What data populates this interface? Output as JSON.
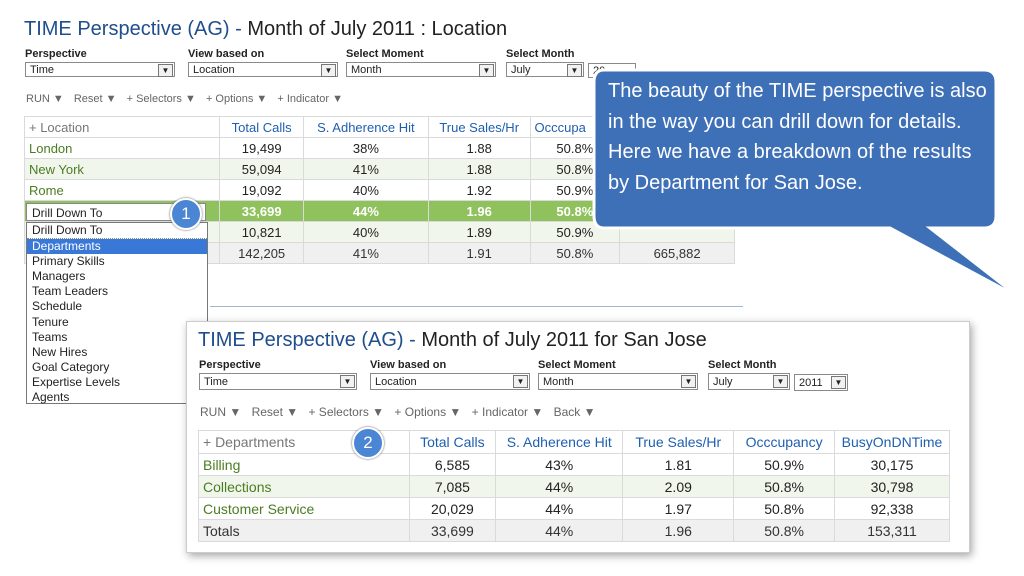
{
  "top": {
    "title_blue": "TIME Perspective (AG) -",
    "title_dark": "Month of July 2011 : Location",
    "selectors": [
      {
        "label": "Perspective",
        "value": "Time"
      },
      {
        "label": "View based on",
        "value": "Location"
      },
      {
        "label": "Select Moment",
        "value": "Month"
      },
      {
        "label": "Select Month",
        "value": "July",
        "year": "20"
      }
    ],
    "toolbar": [
      "RUN ▼",
      "Reset ▼",
      "+ Selectors ▼",
      "+ Options ▼",
      "+ Indicator ▼"
    ],
    "table": {
      "headers": [
        "+ Location",
        "Total Calls",
        "S. Adherence Hit",
        "True Sales/Hr",
        "Occcupa"
      ],
      "rows": [
        [
          "London",
          "19,499",
          "38%",
          "1.88",
          "50.8%"
        ],
        [
          "New York",
          "59,094",
          "41%",
          "1.88",
          "50.8%"
        ],
        [
          "Rome",
          "19,092",
          "40%",
          "1.92",
          "50.9%"
        ],
        [
          "",
          "33,699",
          "44%",
          "1.96",
          "50.8%"
        ],
        [
          "",
          "10,821",
          "40%",
          "1.89",
          "50.9%"
        ],
        [
          "",
          "142,205",
          "41%",
          "1.91",
          "50.8%",
          "665,882"
        ]
      ]
    },
    "dropdown": {
      "input": "Drill Down To",
      "items": [
        "Drill Down To",
        "Departments",
        "Primary Skills",
        "Managers",
        "Team Leaders",
        "Schedule",
        "Tenure",
        "Teams",
        "New Hires",
        "Goal Category",
        "Expertise Levels",
        "Agents"
      ],
      "selected": "Departments"
    }
  },
  "badges": {
    "one": "1",
    "two": "2"
  },
  "callout": {
    "text": "The beauty of the TIME perspective is also in the way you can drill down for details. Here we have a breakdown of the results by Department for San Jose."
  },
  "panel": {
    "title_blue": "TIME Perspective (AG) -",
    "title_dark": "Month of July 2011 for San Jose",
    "selectors": [
      {
        "label": "Perspective",
        "value": "Time"
      },
      {
        "label": "View based on",
        "value": "Location"
      },
      {
        "label": "Select Moment",
        "value": "Month"
      },
      {
        "label": "Select Month",
        "value": "July",
        "year": "2011"
      }
    ],
    "toolbar": [
      "RUN ▼",
      "Reset ▼",
      "+ Selectors ▼",
      "+ Options ▼",
      "+ Indicator ▼",
      "Back ▼"
    ],
    "table": {
      "headers": [
        "+ Departments",
        "Total Calls",
        "S. Adherence Hit",
        "True Sales/Hr",
        "Occcupancy",
        "BusyOnDNTime"
      ],
      "rows": [
        [
          "Billing",
          "6,585",
          "43%",
          "1.81",
          "50.9%",
          "30,175"
        ],
        [
          "Collections",
          "7,085",
          "44%",
          "2.09",
          "50.8%",
          "30,798"
        ],
        [
          "Customer Service",
          "20,029",
          "44%",
          "1.97",
          "50.8%",
          "92,338"
        ],
        [
          "Totals",
          "33,699",
          "44%",
          "1.96",
          "50.8%",
          "153,311"
        ]
      ]
    }
  },
  "colors": {
    "accent": "#1f4e8c",
    "highlight_row": "#8fc15c",
    "callout": "#3e70b8",
    "name_green": "#4a7d21"
  }
}
